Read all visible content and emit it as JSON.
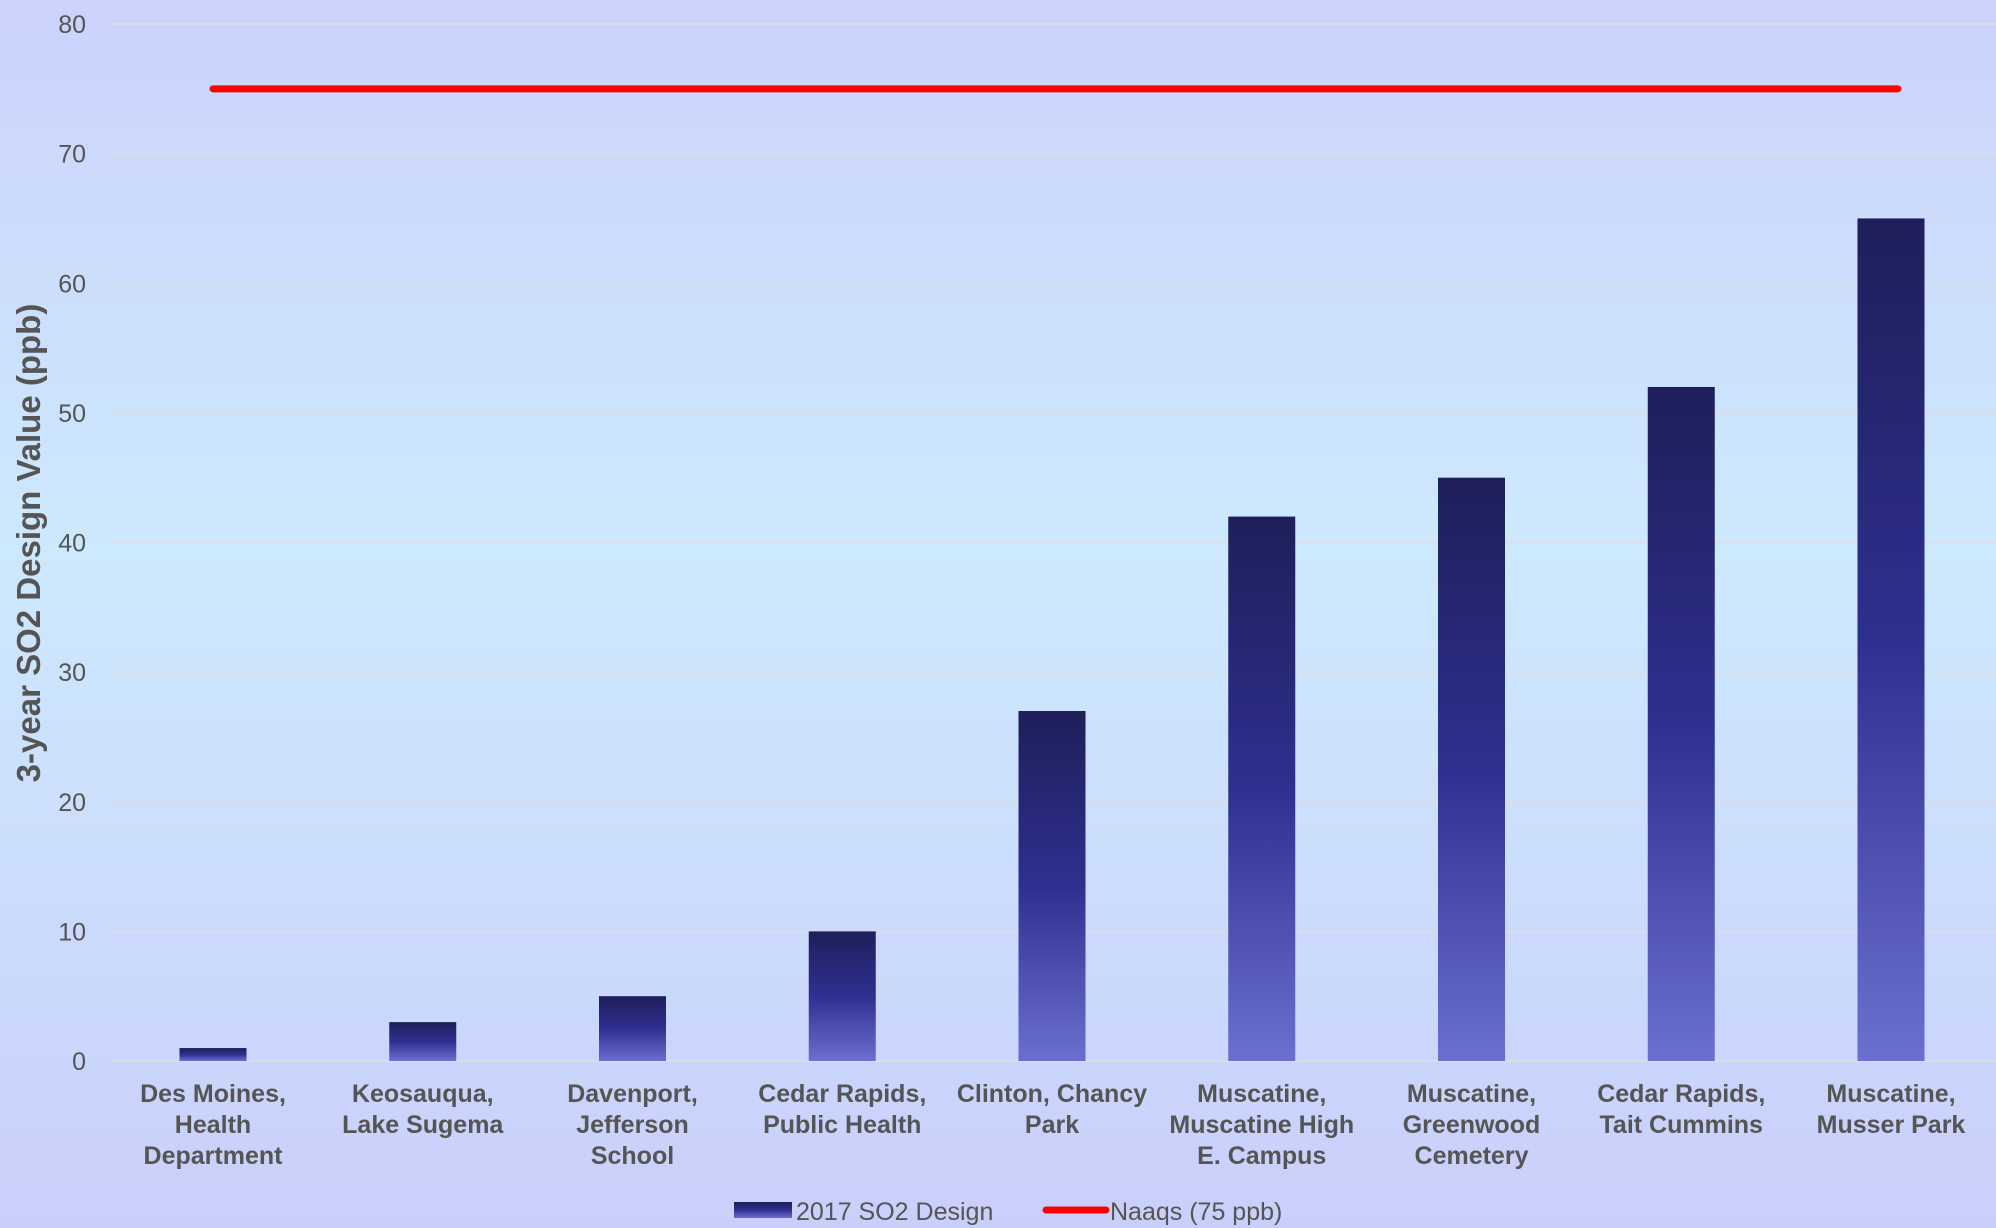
{
  "chart_data": {
    "type": "bar",
    "categories": [
      [
        "Des Moines,",
        "Health",
        "Department"
      ],
      [
        "Keosauqua,",
        "Lake Sugema"
      ],
      [
        "Davenport,",
        "Jefferson",
        "School"
      ],
      [
        "Cedar Rapids,",
        "Public Health"
      ],
      [
        "Clinton, Chancy",
        "Park"
      ],
      [
        "Muscatine,",
        "Muscatine High",
        "E. Campus"
      ],
      [
        "Muscatine,",
        "Greenwood",
        "Cemetery"
      ],
      [
        "Cedar Rapids,",
        "Tait Cummins"
      ],
      [
        "Muscatine,",
        "Musser Park"
      ]
    ],
    "series": [
      {
        "name": "2017 SO2 Design",
        "values": [
          1,
          3,
          5,
          10,
          27,
          42,
          45,
          52,
          65
        ]
      },
      {
        "name": "Naaqs (75 ppb)",
        "type": "line",
        "values": [
          75,
          75,
          75,
          75,
          75,
          75,
          75,
          75,
          75
        ]
      }
    ],
    "xlabel": "",
    "ylabel": "3-year SO2 Design Value (ppb)",
    "ylim": [
      0,
      80
    ],
    "yticks": [
      0,
      10,
      20,
      30,
      40,
      50,
      60,
      70,
      80
    ],
    "grid": true,
    "legend": "bottom",
    "colors": {
      "bar_top": "#1e1f5a",
      "bar_mid": "#2e3090",
      "bar_bottom": "#6b6fd0",
      "line": "#ff0000",
      "grid": "#d9dde6",
      "text": "#555555"
    }
  }
}
